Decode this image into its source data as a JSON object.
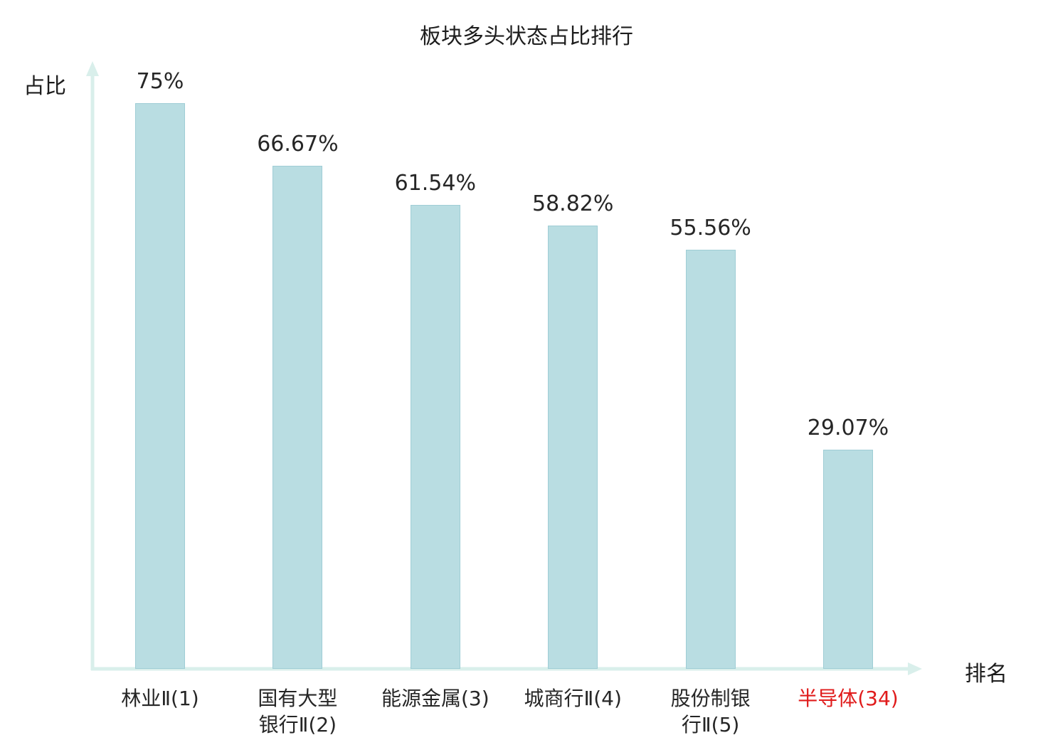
{
  "chart_data": {
    "type": "bar",
    "title": "板块多头状态占比排行",
    "xlabel": "排名",
    "ylabel": "占比",
    "categories": [
      "林业Ⅱ(1)",
      "国有大型银行Ⅱ(2)",
      "能源金属(3)",
      "城商行Ⅱ(4)",
      "股份制银行Ⅱ(5)",
      "半导体(34)"
    ],
    "tick_labels": [
      "林业Ⅱ(1)",
      "国有大型\n银行Ⅱ(2)",
      "能源金属(3)",
      "城商行Ⅱ(4)",
      "股份制银\n行Ⅱ(5)",
      "半导体(34)"
    ],
    "values": [
      75,
      66.67,
      61.54,
      58.82,
      55.56,
      29.07
    ],
    "value_labels": [
      "75%",
      "66.67%",
      "61.54%",
      "58.82%",
      "55.56%",
      "29.07%"
    ],
    "highlight_index": 5,
    "ylim": [
      0,
      80
    ],
    "grid": false,
    "legend": "none",
    "colors": {
      "bar_fill": "#b9dde2",
      "bar_border": "#9fcdd5",
      "axis": "#d9efeb",
      "text": "#262626",
      "highlight_text": "#e01b1b"
    }
  }
}
